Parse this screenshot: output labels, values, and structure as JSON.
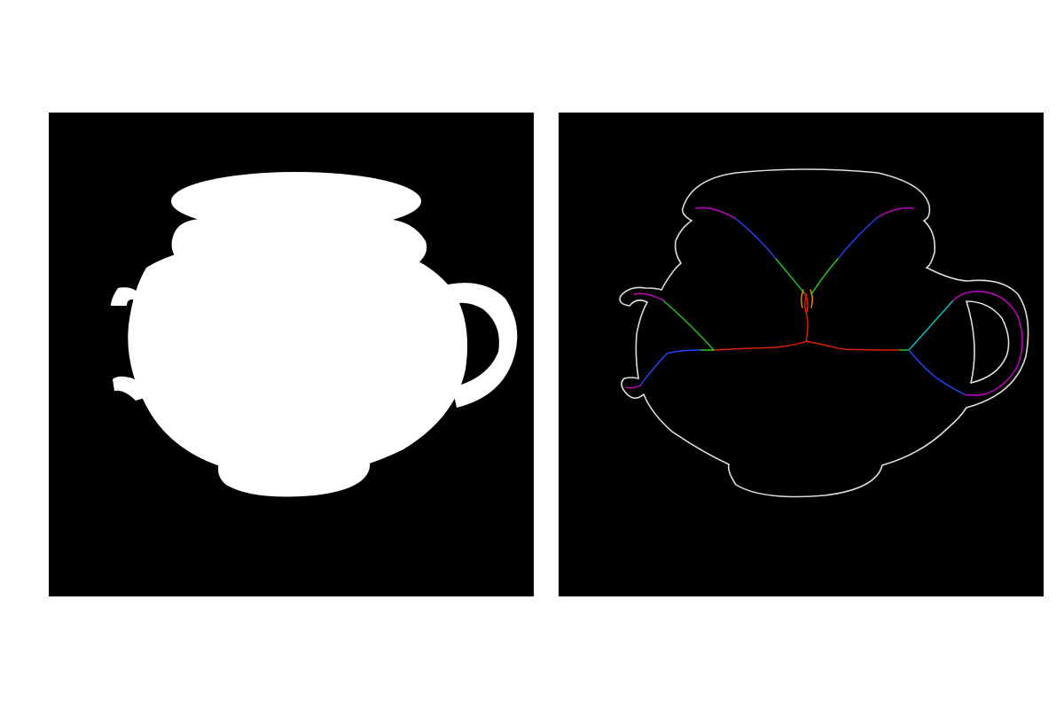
{
  "figure": {
    "background_color": "#ffffff",
    "panel_color": "#000000",
    "panels": [
      {
        "id": "left",
        "content": "binary-silhouette",
        "shape": "teapot",
        "fill_color": "#ffffff"
      },
      {
        "id": "right",
        "content": "contour-with-medial-axis-skeleton",
        "shape": "teapot",
        "outline_color": "#dddddd",
        "skeleton_color_scale": [
          "#cc00cc",
          "#2244ff",
          "#00c8c8",
          "#22cc22",
          "#dd2200"
        ]
      }
    ]
  }
}
